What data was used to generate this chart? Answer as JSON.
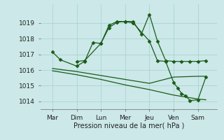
{
  "background_color": "#cce8e8",
  "grid_color": "#aad4d4",
  "line_color": "#1a5c1a",
  "x_labels": [
    "Mar",
    "Dim",
    "Lun",
    "Mer",
    "Jeu",
    "Ven",
    "Sam"
  ],
  "xlabel": "Pression niveau de la mer( hPa )",
  "ylim": [
    1013.5,
    1020.2
  ],
  "yticks": [
    1014,
    1015,
    1016,
    1017,
    1018,
    1019
  ],
  "xtick_positions": [
    0,
    1,
    2,
    3,
    4,
    5,
    6
  ],
  "series1_x": [
    0,
    0.33,
    1.0,
    1.33,
    1.67,
    2.0,
    2.33,
    2.67,
    3.0,
    3.33,
    3.67,
    4.0,
    4.33,
    4.67,
    5.0,
    5.33,
    5.67,
    6.0,
    6.33
  ],
  "series1_y": [
    1017.15,
    1016.65,
    1016.25,
    1016.55,
    1017.75,
    1017.7,
    1018.85,
    1019.1,
    1019.1,
    1019.1,
    1018.3,
    1019.55,
    1017.85,
    1016.6,
    1016.55,
    1016.55,
    1016.55,
    1016.55,
    1016.6
  ],
  "series2_x": [
    0,
    1.0,
    2.0,
    3.0,
    4.0,
    5.0,
    6.0,
    6.33
  ],
  "series2_y": [
    1016.1,
    1015.9,
    1015.65,
    1015.4,
    1015.15,
    1015.55,
    1015.6,
    1015.6
  ],
  "series3_x": [
    0,
    1.0,
    2.0,
    3.0,
    4.0,
    5.0,
    6.0,
    6.33
  ],
  "series3_y": [
    1015.95,
    1015.7,
    1015.4,
    1015.05,
    1014.75,
    1014.4,
    1014.15,
    1014.1
  ],
  "series4_x": [
    1.0,
    1.33,
    2.0,
    2.33,
    2.67,
    3.0,
    3.33,
    4.0,
    4.33,
    4.67,
    5.0,
    5.17,
    5.33,
    5.5,
    5.67,
    6.0,
    6.33
  ],
  "series4_y": [
    1016.55,
    1016.6,
    1017.7,
    1018.7,
    1019.05,
    1019.1,
    1019.0,
    1017.85,
    1016.6,
    1016.55,
    1015.2,
    1014.85,
    1014.5,
    1014.35,
    1014.05,
    1014.1,
    1015.55
  ],
  "marker": "D",
  "markersize": 2.5,
  "linewidth": 0.9
}
